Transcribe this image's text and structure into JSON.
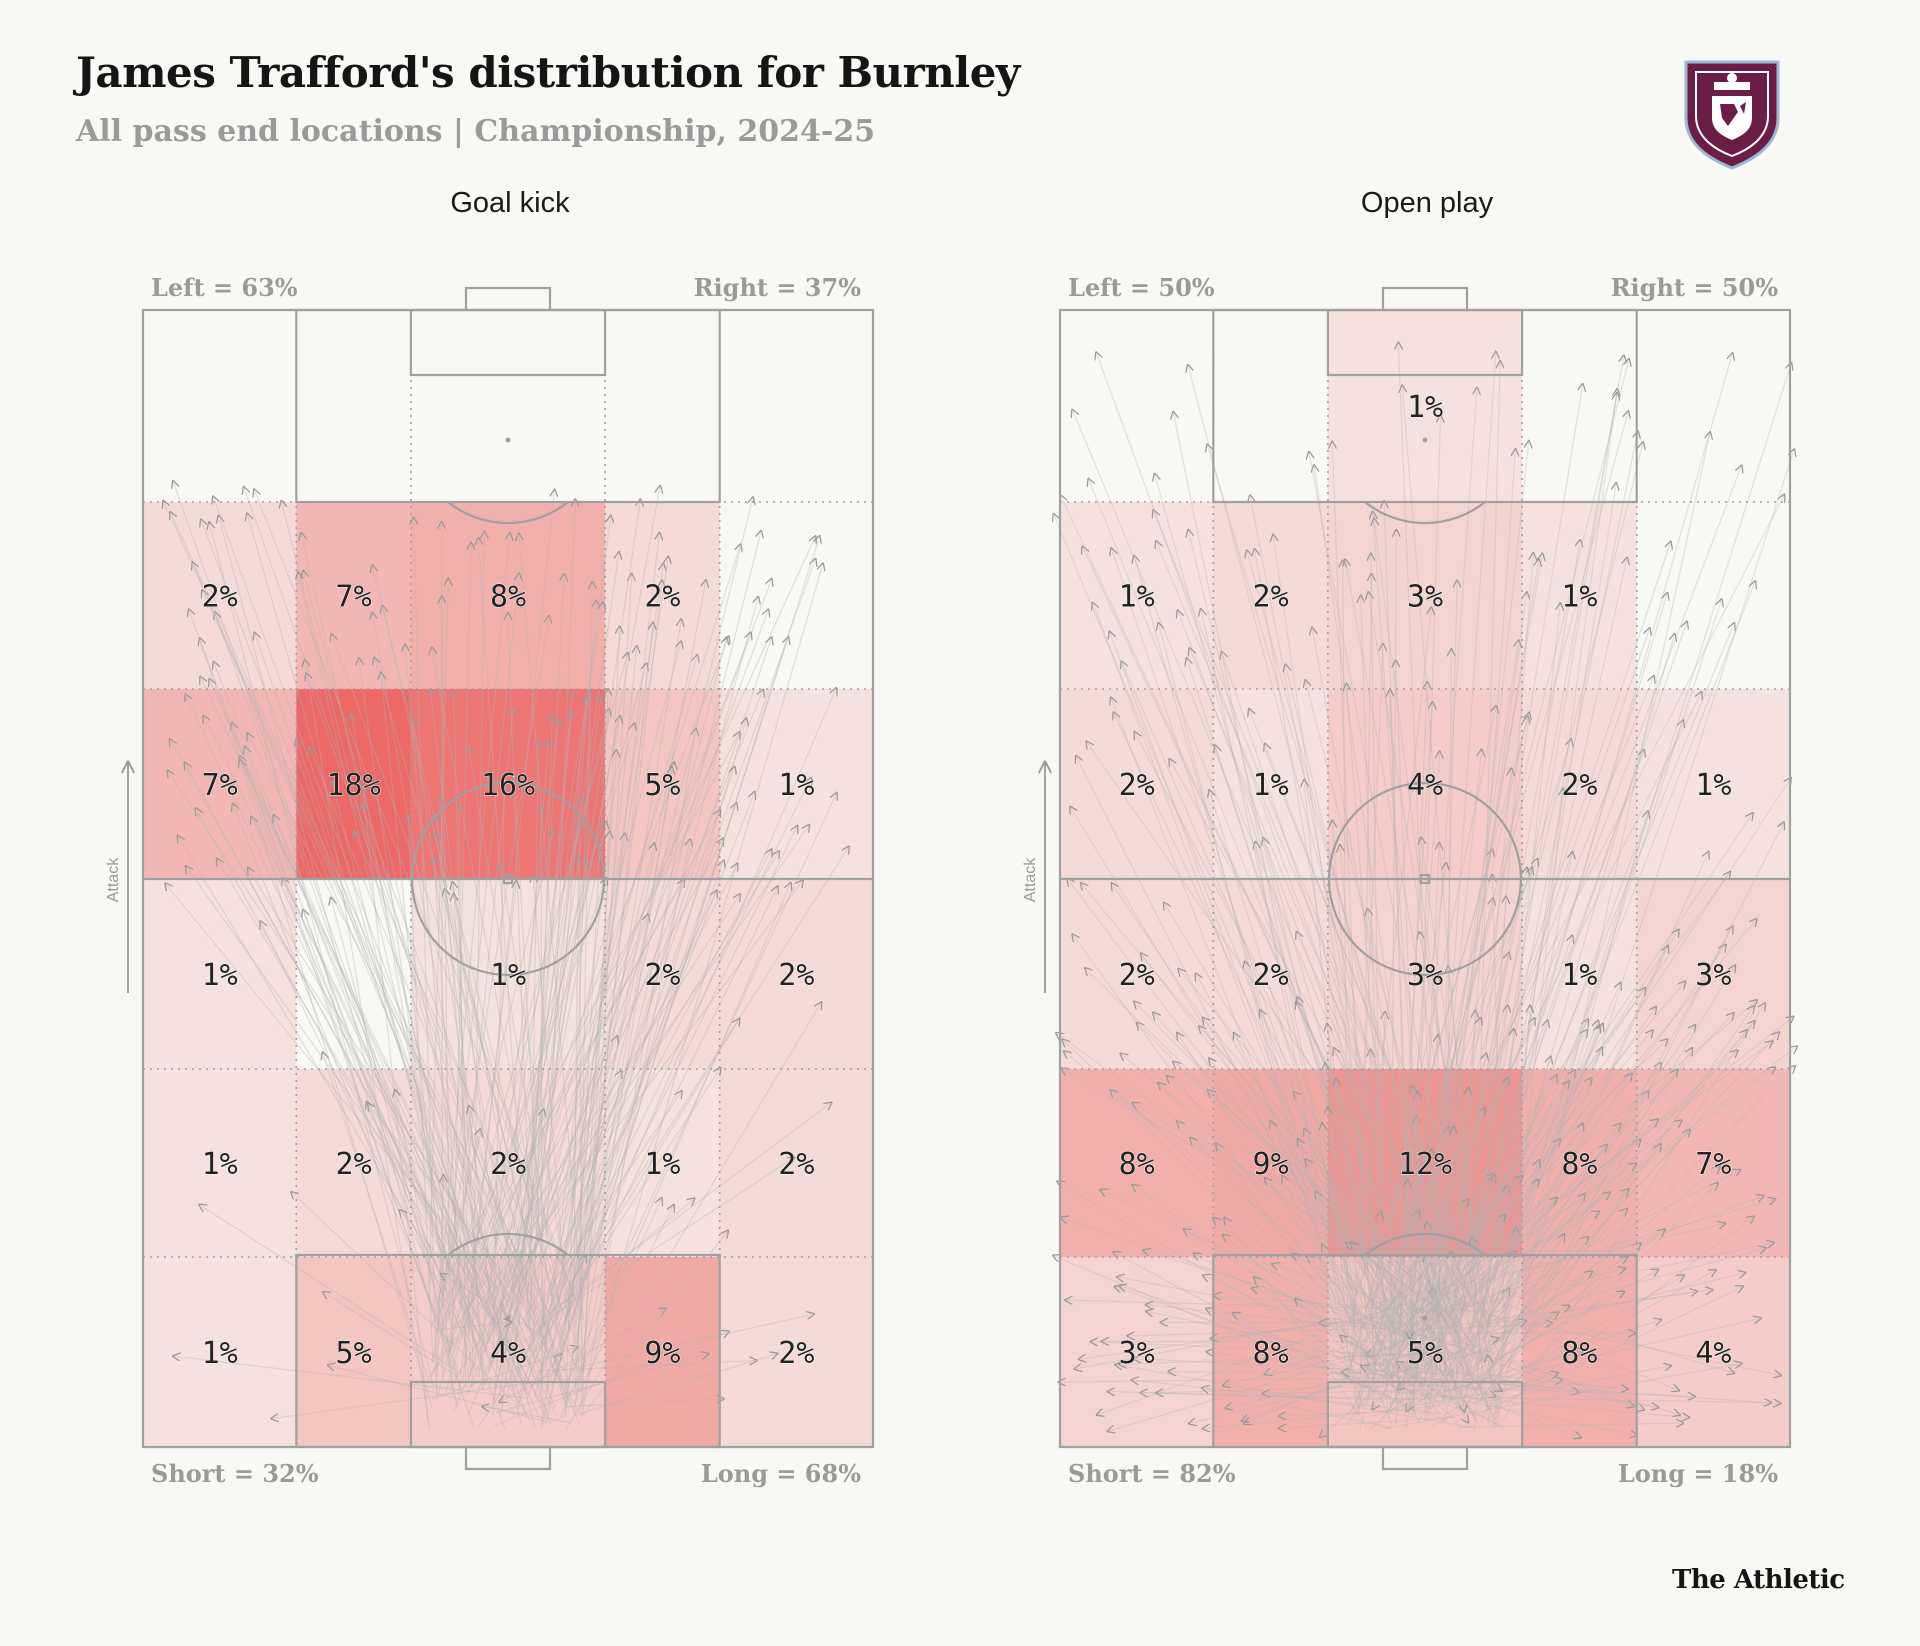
{
  "header": {
    "title": "James Trafford's distribution for Burnley",
    "subtitle": "All pass end locations | Championship, 2024-25",
    "crest_icon": "burnley-crest-icon",
    "brand": "The Athletic"
  },
  "colors": {
    "background": "#f8f8f4",
    "heat_max": "#e8403f",
    "pitch_lines": "#a0a0a0",
    "pass_arrows": "#b4b4b4"
  },
  "chart_data": [
    {
      "type": "heatmap",
      "title": "Goal kick",
      "attack_label": "Attack",
      "labels": {
        "left": "Left = 63%",
        "right": "Right = 37%",
        "short": "Short = 32%",
        "long": "Long = 68%"
      },
      "rows_from_attacking_end": [
        [
          "",
          "",
          "",
          "",
          ""
        ],
        [
          "2%",
          "7%",
          "8%",
          "2%",
          ""
        ],
        [
          "7%",
          "18%",
          "16%",
          "5%",
          "1%"
        ],
        [
          "1%",
          "",
          "1%",
          "2%",
          "2%"
        ],
        [
          "1%",
          "2%",
          "2%",
          "1%",
          "2%"
        ],
        [
          "1%",
          "5%",
          "4%",
          "9%",
          "2%"
        ]
      ]
    },
    {
      "type": "heatmap",
      "title": "Open play",
      "attack_label": "Attack",
      "labels": {
        "left": "Left = 50%",
        "right": "Right = 50%",
        "short": "Short = 82%",
        "long": "Long = 18%"
      },
      "rows_from_attacking_end": [
        [
          "",
          "",
          "1%",
          "",
          ""
        ],
        [
          "1%",
          "2%",
          "3%",
          "1%",
          ""
        ],
        [
          "2%",
          "1%",
          "4%",
          "2%",
          "1%"
        ],
        [
          "2%",
          "2%",
          "3%",
          "1%",
          "3%"
        ],
        [
          "8%",
          "9%",
          "12%",
          "8%",
          "7%"
        ],
        [
          "3%",
          "8%",
          "5%",
          "8%",
          "4%"
        ]
      ]
    }
  ]
}
